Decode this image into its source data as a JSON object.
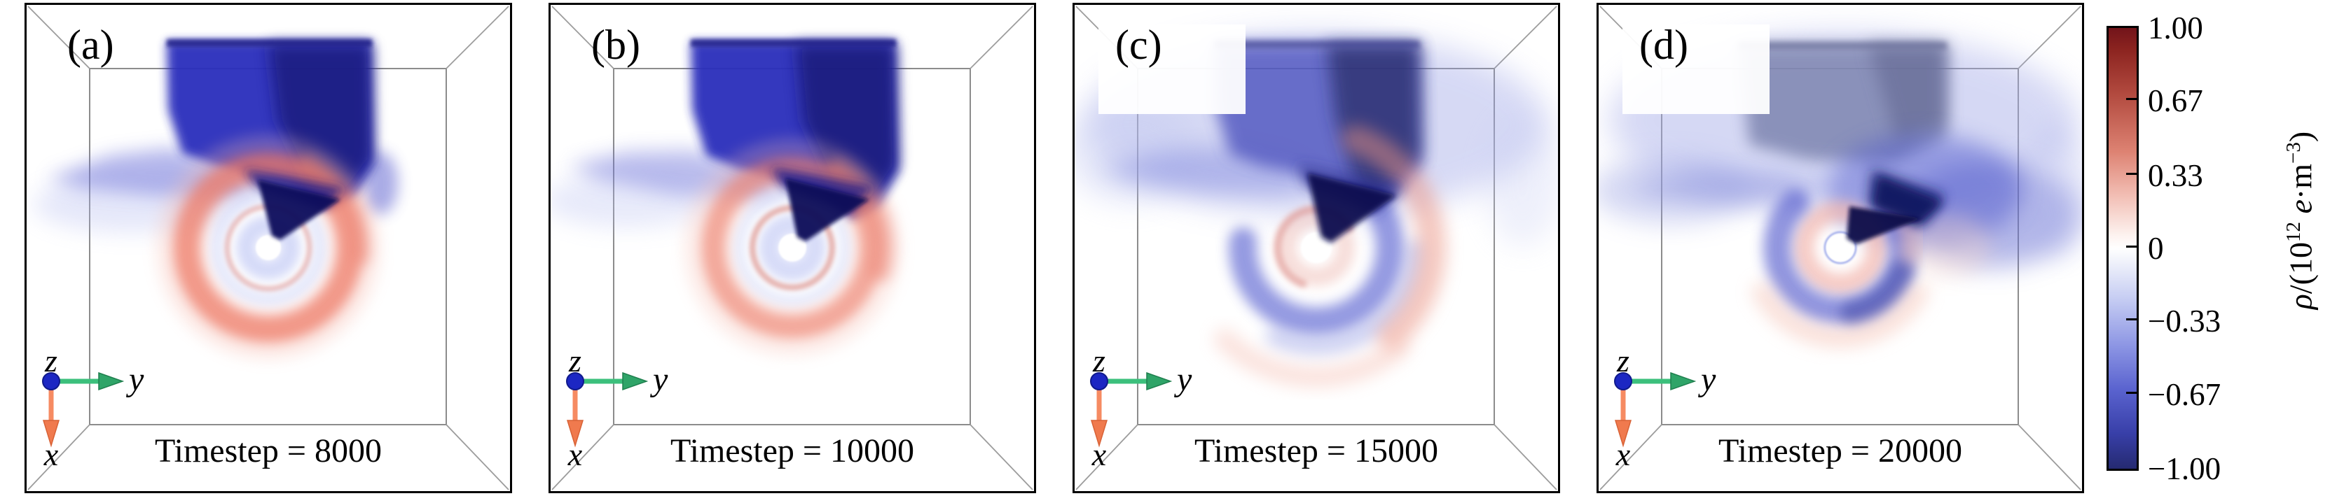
{
  "figure": {
    "panels": [
      {
        "label": "(a)",
        "timestep_label": "Timestep = 8000"
      },
      {
        "label": "(b)",
        "timestep_label": "Timestep = 10000"
      },
      {
        "label": "(c)",
        "timestep_label": "Timestep = 15000"
      },
      {
        "label": "(d)",
        "timestep_label": "Timestep = 20000"
      }
    ],
    "triad": {
      "x": "x",
      "y": "y",
      "z": "z"
    },
    "colorbar": {
      "tick_labels": [
        "1.00",
        "0.67",
        "0.33",
        "0",
        "−0.33",
        "−0.67",
        "−1.00"
      ],
      "unit": {
        "rho": "ρ",
        "open": "/(10",
        "exp": "12",
        "e": " e",
        "m": "·m",
        "mexp": "−3",
        "close": ")"
      }
    }
  },
  "chart_data": {
    "type": "heatmap",
    "subtype": "3d-volume-rendering-time-sequence",
    "title": "",
    "panels": [
      {
        "label": "(a)",
        "timestep": 8000
      },
      {
        "label": "(b)",
        "timestep": 10000
      },
      {
        "label": "(c)",
        "timestep": 15000
      },
      {
        "label": "(d)",
        "timestep": 20000
      }
    ],
    "view_axes": {
      "horizontal_right": "y",
      "vertical_down": "x",
      "out_of_screen": "z"
    },
    "colorbar": {
      "label": "ρ/(10¹² e·m⁻³)",
      "tick_values": [
        1.0,
        0.67,
        0.33,
        0,
        -0.33,
        -0.67,
        -1.0
      ],
      "range": [
        -1,
        1
      ],
      "position": "right",
      "colormap": "diverging red-white-blue",
      "positive_color": "#72141a",
      "zero_color": "#ffffff",
      "negative_color": "#252a71"
    },
    "legend_position": "right",
    "grid": false,
    "notes": "Each panel: negative-density (blue) sheet/plume at top feeding a dark funnel into a central white hole; ring/spiral of positive (red) and negative (blue) density around the hole inside a 3D wireframe box; structure diffuses and rotates with increasing timestep."
  }
}
